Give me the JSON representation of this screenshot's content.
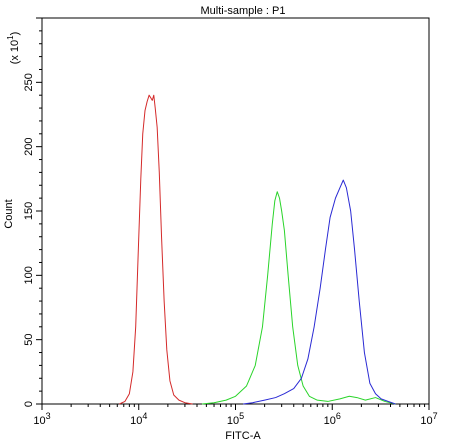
{
  "chart_data": {
    "type": "line",
    "title": "Multi-sample : P1",
    "xlabel": "FITC-A",
    "ylabel": "Count",
    "y_multiplier": {
      "prefix": "(x 10",
      "exponent": "1",
      "suffix": ")"
    },
    "x_scale": "log",
    "xlim": [
      1000,
      10000000
    ],
    "ylim": [
      0,
      300
    ],
    "grid": false,
    "legend": "none",
    "x_ticks": [
      {
        "value": 1000,
        "base": "10",
        "exp": "3"
      },
      {
        "value": 10000,
        "base": "10",
        "exp": "4"
      },
      {
        "value": 100000,
        "base": "10",
        "exp": "5"
      },
      {
        "value": 1000000,
        "base": "10",
        "exp": "6"
      },
      {
        "value": 10000000,
        "base": "10",
        "exp": "7"
      }
    ],
    "y_ticks": [
      {
        "value": 0,
        "label": "0"
      },
      {
        "value": 50,
        "label": "50"
      },
      {
        "value": 100,
        "label": "100"
      },
      {
        "value": 150,
        "label": "150"
      },
      {
        "value": 200,
        "label": "200"
      },
      {
        "value": 250,
        "label": "250"
      }
    ],
    "series": [
      {
        "color": "#d42a2a",
        "points": [
          [
            6300,
            0
          ],
          [
            7200,
            2
          ],
          [
            8000,
            8
          ],
          [
            8700,
            25
          ],
          [
            9300,
            60
          ],
          [
            9900,
            120
          ],
          [
            10500,
            175
          ],
          [
            11000,
            210
          ],
          [
            11600,
            228
          ],
          [
            12200,
            235
          ],
          [
            12800,
            240
          ],
          [
            13300,
            238
          ],
          [
            13800,
            236
          ],
          [
            14300,
            240
          ],
          [
            14800,
            230
          ],
          [
            15500,
            215
          ],
          [
            16300,
            180
          ],
          [
            17200,
            130
          ],
          [
            18300,
            80
          ],
          [
            19500,
            42
          ],
          [
            21000,
            18
          ],
          [
            23000,
            7
          ],
          [
            26000,
            3
          ],
          [
            30000,
            1
          ],
          [
            36000,
            0
          ]
        ]
      },
      {
        "color": "#2ad42a",
        "points": [
          [
            45000,
            0
          ],
          [
            60000,
            1
          ],
          [
            80000,
            3
          ],
          [
            100000,
            6
          ],
          [
            130000,
            14
          ],
          [
            160000,
            30
          ],
          [
            190000,
            60
          ],
          [
            215000,
            100
          ],
          [
            240000,
            140
          ],
          [
            255000,
            158
          ],
          [
            270000,
            165
          ],
          [
            285000,
            160
          ],
          [
            300000,
            150
          ],
          [
            320000,
            135
          ],
          [
            350000,
            100
          ],
          [
            390000,
            60
          ],
          [
            440000,
            30
          ],
          [
            500000,
            14
          ],
          [
            580000,
            6
          ],
          [
            700000,
            3
          ],
          [
            900000,
            2
          ],
          [
            1200000,
            4
          ],
          [
            1500000,
            6
          ],
          [
            1800000,
            5
          ],
          [
            2200000,
            3
          ],
          [
            2800000,
            5
          ],
          [
            3500000,
            2
          ],
          [
            4500000,
            0
          ]
        ]
      },
      {
        "color": "#2a2ad4",
        "points": [
          [
            120000,
            0
          ],
          [
            150000,
            1
          ],
          [
            200000,
            3
          ],
          [
            260000,
            5
          ],
          [
            320000,
            8
          ],
          [
            400000,
            12
          ],
          [
            480000,
            20
          ],
          [
            560000,
            35
          ],
          [
            650000,
            60
          ],
          [
            750000,
            90
          ],
          [
            850000,
            120
          ],
          [
            950000,
            145
          ],
          [
            1080000,
            160
          ],
          [
            1200000,
            168
          ],
          [
            1300000,
            174
          ],
          [
            1400000,
            168
          ],
          [
            1550000,
            150
          ],
          [
            1700000,
            120
          ],
          [
            1900000,
            80
          ],
          [
            2150000,
            40
          ],
          [
            2450000,
            16
          ],
          [
            2800000,
            8
          ],
          [
            3200000,
            4
          ],
          [
            3800000,
            2
          ],
          [
            4500000,
            0
          ]
        ]
      }
    ]
  }
}
